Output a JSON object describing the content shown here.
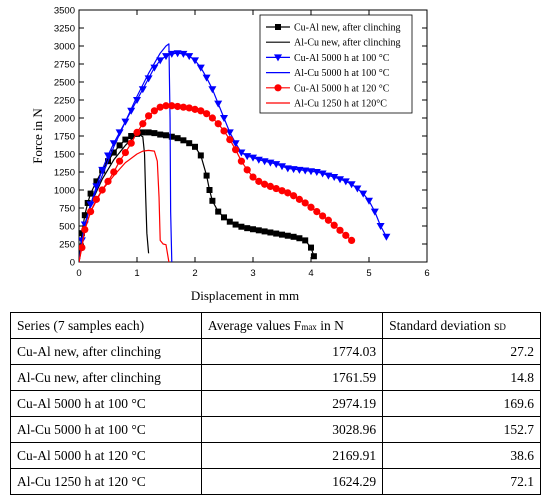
{
  "chart_data": {
    "type": "line",
    "title": "",
    "xlabel": "Displacement in mm",
    "ylabel": "Force in N",
    "xlim": [
      0,
      6
    ],
    "ylim": [
      0,
      3500
    ],
    "xticks": [
      0,
      1,
      2,
      3,
      4,
      5,
      6
    ],
    "yticks": [
      0,
      250,
      500,
      750,
      1000,
      1250,
      1500,
      1750,
      2000,
      2250,
      2500,
      2750,
      3000,
      3250,
      3500
    ],
    "grid": false,
    "legend_position": "top-right",
    "series": [
      {
        "name": "Cu-Al new, after clinching",
        "color": "#000000",
        "marker": "square",
        "x": [
          0,
          0.05,
          0.1,
          0.15,
          0.2,
          0.3,
          0.4,
          0.5,
          0.6,
          0.7,
          0.8,
          0.9,
          1.0,
          1.1,
          1.2,
          1.3,
          1.4,
          1.5,
          1.6,
          1.7,
          1.8,
          1.9,
          2.0,
          2.1,
          2.2,
          2.25,
          2.3,
          2.4,
          2.5,
          2.6,
          2.7,
          2.8,
          2.9,
          3.0,
          3.1,
          3.2,
          3.3,
          3.4,
          3.5,
          3.6,
          3.7,
          3.8,
          3.9,
          4.0,
          4.05
        ],
        "y": [
          0,
          400,
          650,
          820,
          950,
          1120,
          1270,
          1400,
          1520,
          1620,
          1700,
          1750,
          1780,
          1800,
          1800,
          1790,
          1770,
          1760,
          1740,
          1720,
          1690,
          1650,
          1600,
          1480,
          1200,
          1000,
          850,
          700,
          620,
          560,
          520,
          490,
          470,
          455,
          440,
          425,
          410,
          395,
          380,
          365,
          350,
          330,
          300,
          200,
          80
        ]
      },
      {
        "name": "Al-Cu new, after clinching",
        "color": "#000000",
        "marker": "none",
        "x": [
          0,
          0.1,
          0.2,
          0.4,
          0.6,
          0.8,
          0.95,
          1.05,
          1.1,
          1.13,
          1.15,
          1.17,
          1.2
        ],
        "y": [
          0,
          520,
          800,
          1150,
          1420,
          1620,
          1740,
          1762,
          1740,
          1500,
          900,
          400,
          120
        ]
      },
      {
        "name": "Cu-Al 5000 h at 100 °C",
        "color": "#0000ff",
        "marker": "triangle-down",
        "x": [
          0,
          0.05,
          0.1,
          0.2,
          0.3,
          0.4,
          0.5,
          0.6,
          0.7,
          0.8,
          0.9,
          1.0,
          1.1,
          1.2,
          1.3,
          1.4,
          1.5,
          1.6,
          1.7,
          1.8,
          1.9,
          2.0,
          2.1,
          2.2,
          2.3,
          2.4,
          2.5,
          2.6,
          2.7,
          2.8,
          2.9,
          3.0,
          3.1,
          3.2,
          3.3,
          3.4,
          3.5,
          3.6,
          3.7,
          3.8,
          3.9,
          4.0,
          4.1,
          4.2,
          4.3,
          4.4,
          4.5,
          4.6,
          4.7,
          4.8,
          4.9,
          5.0,
          5.1,
          5.2,
          5.3
        ],
        "y": [
          0,
          300,
          520,
          800,
          1050,
          1280,
          1480,
          1650,
          1800,
          1950,
          2100,
          2250,
          2400,
          2550,
          2700,
          2800,
          2860,
          2890,
          2900,
          2890,
          2860,
          2800,
          2700,
          2560,
          2400,
          2200,
          2000,
          1800,
          1650,
          1520,
          1470,
          1450,
          1420,
          1400,
          1380,
          1360,
          1330,
          1300,
          1290,
          1280,
          1270,
          1260,
          1250,
          1230,
          1200,
          1180,
          1150,
          1120,
          1080,
          1020,
          950,
          850,
          700,
          500,
          350
        ]
      },
      {
        "name": "Al-Cu 5000 h at 100 °C",
        "color": "#0000ff",
        "marker": "none",
        "x": [
          0,
          0.1,
          0.2,
          0.4,
          0.6,
          0.8,
          1.0,
          1.2,
          1.4,
          1.5,
          1.55,
          1.57,
          1.58,
          1.6
        ],
        "y": [
          0,
          500,
          800,
          1200,
          1600,
          1950,
          2300,
          2620,
          2900,
          3000,
          3029,
          2000,
          700,
          0
        ]
      },
      {
        "name": "Cu-Al 5000 h at 120 °C",
        "color": "#ff0000",
        "marker": "circle",
        "x": [
          0,
          0.05,
          0.1,
          0.2,
          0.3,
          0.4,
          0.5,
          0.6,
          0.7,
          0.8,
          0.9,
          1.0,
          1.1,
          1.2,
          1.3,
          1.4,
          1.5,
          1.6,
          1.7,
          1.8,
          1.9,
          2.0,
          2.1,
          2.2,
          2.3,
          2.4,
          2.5,
          2.6,
          2.7,
          2.8,
          2.9,
          3.0,
          3.1,
          3.2,
          3.3,
          3.4,
          3.5,
          3.6,
          3.7,
          3.8,
          3.9,
          4.0,
          4.1,
          4.2,
          4.3,
          4.4,
          4.5,
          4.6,
          4.7
        ],
        "y": [
          0,
          200,
          450,
          700,
          870,
          1000,
          1120,
          1250,
          1400,
          1520,
          1650,
          1800,
          1920,
          2030,
          2100,
          2150,
          2170,
          2170,
          2160,
          2150,
          2140,
          2120,
          2100,
          2060,
          2000,
          1920,
          1820,
          1700,
          1560,
          1400,
          1280,
          1180,
          1120,
          1080,
          1050,
          1020,
          990,
          960,
          920,
          870,
          820,
          760,
          700,
          640,
          580,
          510,
          440,
          370,
          300
        ]
      },
      {
        "name": "Al-Cu 1250 h at 120°C",
        "color": "#ff0000",
        "marker": "none",
        "x": [
          0,
          0.1,
          0.2,
          0.4,
          0.6,
          0.8,
          1.0,
          1.1,
          1.2,
          1.3,
          1.35,
          1.38,
          1.4,
          1.45,
          1.5,
          1.55
        ],
        "y": [
          0,
          450,
          700,
          1000,
          1200,
          1380,
          1500,
          1540,
          1550,
          1540,
          1400,
          900,
          300,
          250,
          240,
          0
        ]
      }
    ]
  },
  "table": {
    "headers": {
      "series": "Series (7 samples each)",
      "average": "Average values F",
      "average_sub": "max",
      "average_tail": " in N",
      "deviation": "Standard deviation s",
      "deviation_sub": "D"
    },
    "rows": [
      {
        "series": "Cu-Al new, after clinching",
        "average": "1774.03",
        "deviation": "27.2"
      },
      {
        "series": "Al-Cu new, after clinching",
        "average": "1761.59",
        "deviation": "14.8"
      },
      {
        "series": "Cu-Al 5000 h at 100 °C",
        "average": "2974.19",
        "deviation": "169.6"
      },
      {
        "series": "Al-Cu 5000 h at 100 °C",
        "average": "3028.96",
        "deviation": "152.7"
      },
      {
        "series": "Cu-Al 5000 h at 120 °C",
        "average": "2169.91",
        "deviation": "38.6"
      },
      {
        "series": "Al-Cu 1250 h at 120 °C",
        "average": "1624.29",
        "deviation": "72.1"
      }
    ]
  }
}
